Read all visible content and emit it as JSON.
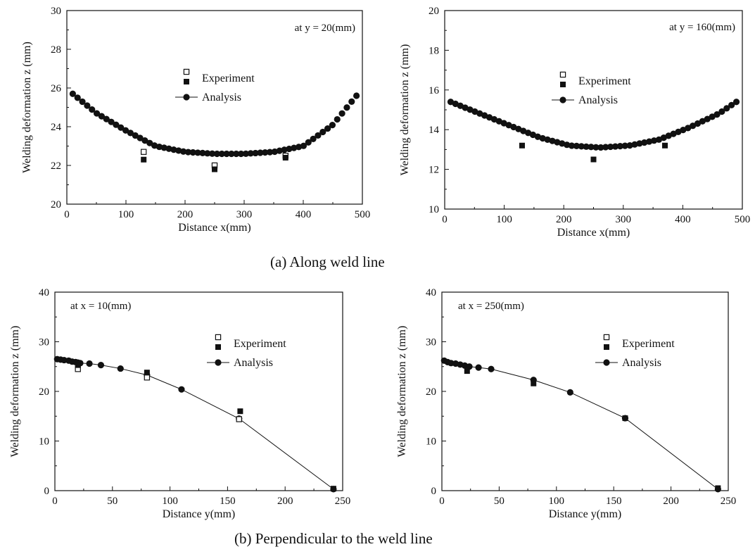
{
  "captions": {
    "a": "(a) Along weld line",
    "b": "(b) Perpendicular to the weld line"
  },
  "colors": {
    "ink": "#111111",
    "background": "#ffffff"
  },
  "chart_data": [
    {
      "type": "scatter",
      "panel": "a-left",
      "xlabel": "Distance x(mm)",
      "ylabel": "Welding deformation z (mm)",
      "annotation": "at y = 20(mm)",
      "xlim": [
        0,
        500
      ],
      "ylim": [
        20,
        30
      ],
      "xticks": [
        0,
        100,
        200,
        300,
        400,
        500
      ],
      "yticks": [
        20,
        22,
        24,
        26,
        28,
        30
      ],
      "legend": [
        "Experiment",
        "Analysis"
      ],
      "legend_position": "center",
      "series": [
        {
          "name": "Analysis",
          "marker": "filled-circle",
          "line": false,
          "x": [
            10,
            50,
            100,
            150,
            200,
            250,
            300,
            350,
            400,
            450,
            490
          ],
          "y": [
            25.7,
            24.7,
            23.8,
            23.0,
            22.7,
            22.6,
            22.6,
            22.7,
            23.0,
            24.1,
            25.6
          ]
        },
        {
          "name": "Experiment",
          "marker": "open-square",
          "x": [
            130,
            250,
            370
          ],
          "y": [
            22.7,
            22.0,
            22.5
          ]
        },
        {
          "name": "Experiment",
          "marker": "filled-square",
          "x": [
            130,
            250,
            370
          ],
          "y": [
            22.3,
            21.8,
            22.4
          ]
        }
      ]
    },
    {
      "type": "scatter",
      "panel": "a-right",
      "xlabel": "Distance x(mm)",
      "ylabel": "Welding deformation z (mm)",
      "annotation": "at y = 160(mm)",
      "xlim": [
        0,
        500
      ],
      "ylim": [
        10,
        20
      ],
      "xticks": [
        0,
        100,
        200,
        300,
        400,
        500
      ],
      "yticks": [
        10,
        12,
        14,
        16,
        18,
        20
      ],
      "legend": [
        "Experiment",
        "Analysis"
      ],
      "legend_position": "center",
      "series": [
        {
          "name": "Analysis",
          "marker": "filled-circle",
          "line": false,
          "x": [
            10,
            60,
            110,
            160,
            210,
            260,
            310,
            360,
            410,
            460,
            490
          ],
          "y": [
            15.4,
            14.8,
            14.2,
            13.6,
            13.2,
            13.1,
            13.2,
            13.5,
            14.1,
            14.8,
            15.4
          ]
        },
        {
          "name": "Experiment",
          "marker": "filled-square",
          "x": [
            130,
            250,
            370
          ],
          "y": [
            13.2,
            12.5,
            13.2
          ]
        }
      ]
    },
    {
      "type": "line",
      "panel": "b-left",
      "xlabel": "Distance y(mm)",
      "ylabel": "Welding deformation z (mm)",
      "annotation": "at x = 10(mm)",
      "xlim": [
        0,
        250
      ],
      "ylim": [
        0,
        40
      ],
      "xticks": [
        0,
        50,
        100,
        150,
        200,
        250
      ],
      "yticks": [
        0,
        10,
        20,
        30,
        40
      ],
      "legend": [
        "Experiment",
        "Analysis"
      ],
      "legend_position": "upper-right",
      "series": [
        {
          "name": "Analysis",
          "marker": "filled-circle",
          "line": true,
          "x": [
            2,
            5,
            8,
            12,
            15,
            18,
            20,
            22,
            30,
            40,
            57,
            80,
            110,
            160,
            242
          ],
          "y": [
            26.5,
            26.4,
            26.3,
            26.2,
            26.0,
            25.9,
            25.8,
            25.7,
            25.6,
            25.3,
            24.6,
            23.3,
            20.4,
            14.5,
            0.3
          ]
        },
        {
          "name": "Experiment",
          "marker": "open-square",
          "x": [
            20,
            80,
            160
          ],
          "y": [
            24.5,
            22.8,
            14.4
          ]
        },
        {
          "name": "Experiment",
          "marker": "filled-square",
          "x": [
            20,
            80,
            161,
            242
          ],
          "y": [
            25.3,
            23.8,
            16.0,
            0.4
          ]
        }
      ]
    },
    {
      "type": "line",
      "panel": "b-right",
      "xlabel": "Distance y(mm)",
      "ylabel": "Welding deformation z (mm)",
      "annotation": "at x = 250(mm)",
      "xlim": [
        0,
        250
      ],
      "ylim": [
        0,
        40
      ],
      "xticks": [
        0,
        50,
        100,
        150,
        200,
        250
      ],
      "yticks": [
        0,
        10,
        20,
        30,
        40
      ],
      "legend": [
        "Experiment",
        "Analysis"
      ],
      "legend_position": "upper-right",
      "series": [
        {
          "name": "Analysis",
          "marker": "filled-circle",
          "line": true,
          "x": [
            2,
            5,
            8,
            12,
            16,
            20,
            24,
            32,
            43,
            80,
            112,
            160,
            241
          ],
          "y": [
            26.2,
            25.9,
            25.7,
            25.6,
            25.4,
            25.2,
            25.0,
            24.8,
            24.5,
            22.3,
            19.8,
            14.6,
            0.3
          ]
        },
        {
          "name": "Experiment",
          "marker": "filled-square",
          "x": [
            22,
            80,
            160,
            241
          ],
          "y": [
            24.1,
            21.6,
            14.6,
            0.5
          ]
        }
      ]
    }
  ]
}
